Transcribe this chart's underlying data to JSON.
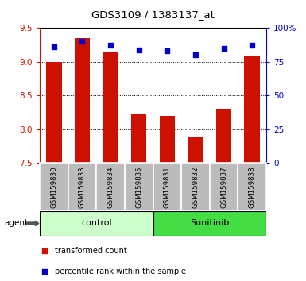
{
  "title": "GDS3109 / 1383137_at",
  "samples": [
    "GSM159830",
    "GSM159833",
    "GSM159834",
    "GSM159835",
    "GSM159831",
    "GSM159832",
    "GSM159837",
    "GSM159838"
  ],
  "red_values": [
    9.0,
    9.35,
    9.15,
    8.23,
    8.2,
    7.88,
    8.3,
    9.08
  ],
  "blue_values": [
    86,
    90,
    87,
    84,
    83,
    80,
    85,
    87
  ],
  "group_labels": [
    "control",
    "Sunitinib"
  ],
  "ctrl_color": "#ccffcc",
  "sun_color": "#44dd44",
  "ylim_left": [
    7.5,
    9.5
  ],
  "ylim_right": [
    0,
    100
  ],
  "yticks_left": [
    7.5,
    8.0,
    8.5,
    9.0,
    9.5
  ],
  "yticks_right": [
    0,
    25,
    50,
    75,
    100
  ],
  "ytick_labels_right": [
    "0",
    "25",
    "50",
    "75",
    "100%"
  ],
  "bar_color": "#cc1100",
  "dot_color": "#0000cc",
  "sample_bg": "#bbbbbb",
  "left_axis_color": "#cc1100",
  "right_axis_color": "#0000cc",
  "bar_bottom": 7.5,
  "legend_red": "transformed count",
  "legend_blue": "percentile rank within the sample",
  "agent_label": "agent"
}
